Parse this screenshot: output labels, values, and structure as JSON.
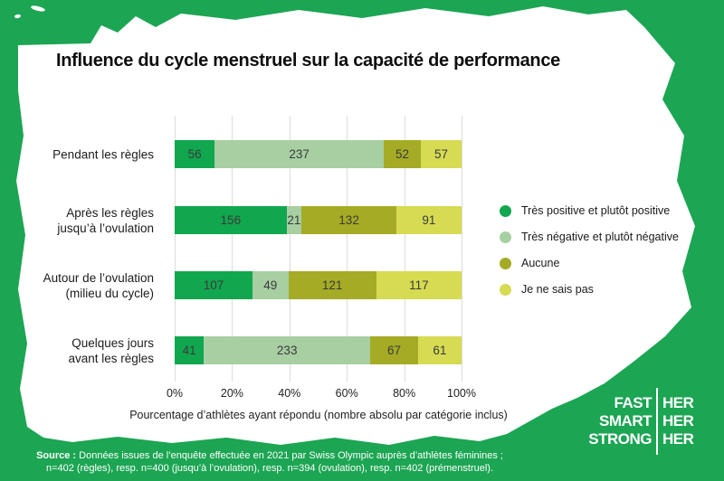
{
  "title": "Influence du cycle menstruel sur la capacité de performance",
  "chart_data": {
    "type": "bar",
    "stacked": true,
    "orientation": "horizontal",
    "categories": [
      [
        "Pendant les règles"
      ],
      [
        "Après les règles",
        "jusqu’à l’ovulation"
      ],
      [
        "Autour de l’ovulation",
        "(milieu du cycle)"
      ],
      [
        "Quelques jours",
        "avant les règles"
      ]
    ],
    "series": [
      {
        "name": "Très positive et plutôt positive",
        "color": "#10a74f",
        "values": [
          56,
          156,
          107,
          41
        ]
      },
      {
        "name": "Très négative et plutôt négative",
        "color": "#a7cfa2",
        "values": [
          237,
          21,
          49,
          233
        ]
      },
      {
        "name": "Aucune",
        "color": "#a5ab25",
        "values": [
          52,
          132,
          121,
          67
        ]
      },
      {
        "name": "Je ne sais pas",
        "color": "#d6db52",
        "values": [
          57,
          91,
          117,
          61
        ]
      }
    ],
    "totals": [
      402,
      400,
      394,
      402
    ],
    "x_ticks": [
      "0%",
      "20%",
      "40%",
      "60%",
      "80%",
      "100%"
    ],
    "xlim": [
      0,
      100
    ],
    "grid": true,
    "legend_position": "right",
    "xlabel": "Pourcentage d’athlètes ayant répondu (nombre absolu par catégorie inclus)"
  },
  "source": {
    "label": "Source :",
    "line1": "Données issues de l’enquête effectuée en 2021 par Swiss Olympic auprès d’athlètes féminines ;",
    "line2": "n=402 (règles), resp. n=400 (jusqu’à l’ovulation), resp. n=394 (ovulation), resp. n=402 (prémenstruel)."
  },
  "logo": {
    "left": [
      "FAST",
      "SMART",
      "STRONG"
    ],
    "right": [
      "HER",
      "HER",
      "HER"
    ]
  },
  "colors": {
    "background": "#1ca553",
    "card": "#ffffff",
    "gridline": "#dcdcdc",
    "value_label": "#3b3b3b",
    "title_text": "#0e0e0e",
    "source_text": "#ffffff"
  }
}
